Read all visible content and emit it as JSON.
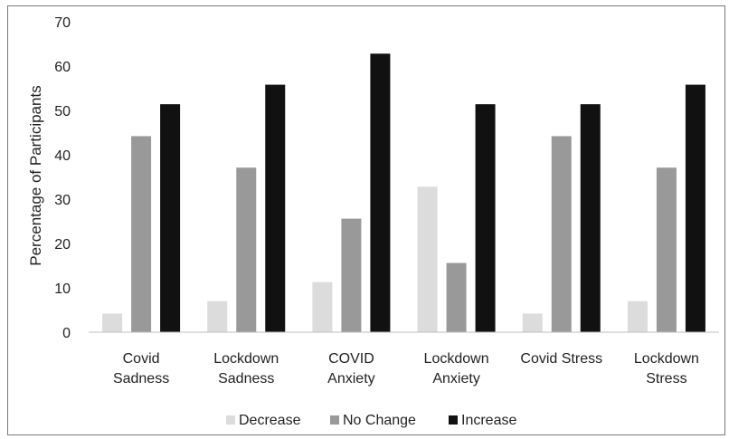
{
  "chart_data": {
    "type": "bar",
    "title": "",
    "xlabel": "",
    "ylabel": "Percentage of Participants",
    "ylim": [
      0,
      70
    ],
    "yticks": [
      0,
      10,
      20,
      30,
      40,
      50,
      60,
      70
    ],
    "grid": false,
    "legend_position": "bottom",
    "categories": [
      [
        "Covid",
        "Sadness"
      ],
      [
        "Lockdown",
        "Sadness"
      ],
      [
        "COVID",
        "Anxiety"
      ],
      [
        "Lockdown",
        "Anxiety"
      ],
      [
        "Covid Stress"
      ],
      [
        "Lockdown",
        "Stress"
      ]
    ],
    "series": [
      {
        "name": "Decrease",
        "color": "#dcdcdc",
        "values": [
          4.2,
          7,
          11.3,
          32.8,
          4.2,
          7
        ]
      },
      {
        "name": "No Change",
        "color": "#999999",
        "values": [
          44.2,
          37.1,
          25.6,
          15.6,
          44.2,
          37.1
        ]
      },
      {
        "name": "Increase",
        "color": "#111111",
        "values": [
          51.4,
          55.8,
          62.8,
          51.4,
          51.4,
          55.8
        ]
      }
    ]
  }
}
